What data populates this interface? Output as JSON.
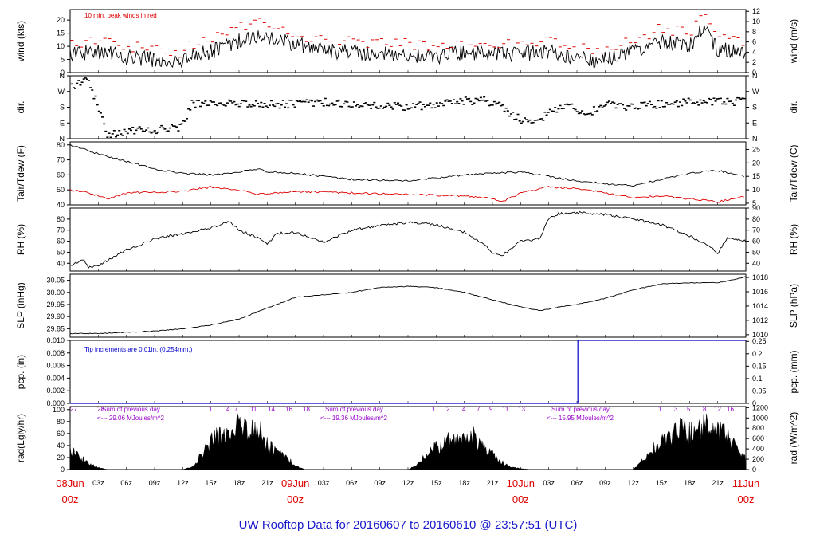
{
  "footer": "UW Rooftop Data for 20160607  to  20160610 @ 23:57:51  (UTC)",
  "colors": {
    "series": "#000000",
    "peak": "#e00000",
    "dewpoint": "#e00000",
    "note_blue": "#0000cc",
    "sum_text": "#9900cc",
    "date": "#e00000",
    "footer": "#1a1acc"
  },
  "time_axis": {
    "hours_total": 72,
    "hour_labels": [
      {
        "h": 3,
        "t": "03z"
      },
      {
        "h": 6,
        "t": "06z"
      },
      {
        "h": 9,
        "t": "09z"
      },
      {
        "h": 12,
        "t": "12z"
      },
      {
        "h": 15,
        "t": "15z"
      },
      {
        "h": 18,
        "t": "18z"
      },
      {
        "h": 21,
        "t": "21z"
      },
      {
        "h": 27,
        "t": "03z"
      },
      {
        "h": 30,
        "t": "06z"
      },
      {
        "h": 33,
        "t": "09z"
      },
      {
        "h": 36,
        "t": "12z"
      },
      {
        "h": 39,
        "t": "15z"
      },
      {
        "h": 42,
        "t": "18z"
      },
      {
        "h": 45,
        "t": "21z"
      },
      {
        "h": 51,
        "t": "03z"
      },
      {
        "h": 54,
        "t": "06z"
      },
      {
        "h": 57,
        "t": "09z"
      },
      {
        "h": 60,
        "t": "12z"
      },
      {
        "h": 63,
        "t": "15z"
      },
      {
        "h": 66,
        "t": "18z"
      },
      {
        "h": 69,
        "t": "21z"
      }
    ],
    "date_labels": [
      {
        "h": 0,
        "date": "08Jun",
        "time": "00z"
      },
      {
        "h": 24,
        "date": "09Jun",
        "time": "00z"
      },
      {
        "h": 48,
        "date": "10Jun",
        "time": "00z"
      },
      {
        "h": 72,
        "date": "11Jun",
        "time": "00z"
      }
    ]
  },
  "chart_data": [
    {
      "id": "wind",
      "type": "line",
      "ylabel_left": "wind (kts)",
      "ylabel_right": "wind (m/s)",
      "ylim": [
        0,
        24
      ],
      "left_ticks": [
        0,
        5,
        10,
        15,
        20
      ],
      "right_ylim": [
        0,
        12.35
      ],
      "right_ticks": [
        0,
        2,
        4,
        6,
        8,
        10,
        12
      ],
      "annotation": "10 min. peak winds in red",
      "x": [
        0,
        3,
        6,
        9,
        12,
        12.5,
        15,
        18,
        20,
        21,
        24,
        27,
        30,
        33,
        36,
        39,
        42,
        45,
        48,
        51,
        54,
        56,
        60,
        63,
        66,
        67.5,
        69,
        72
      ],
      "y": [
        7,
        8,
        6,
        5,
        4,
        6,
        8,
        12,
        14,
        13,
        11,
        8,
        8,
        7,
        7,
        6,
        8,
        7,
        7,
        8,
        6,
        4,
        8,
        12,
        10,
        17,
        9,
        8
      ],
      "peak_y": [
        11,
        12,
        10,
        9,
        7,
        10,
        13,
        17,
        19,
        18,
        15,
        12,
        12,
        11,
        11,
        10,
        12,
        11,
        11,
        12,
        10,
        8,
        12,
        17,
        15,
        22,
        13,
        12
      ]
    },
    {
      "id": "dir",
      "type": "scatter",
      "ylabel_left": "dir.",
      "ylabel_right": "dir.",
      "y_categories": [
        "N",
        "E",
        "S",
        "W",
        "N"
      ],
      "ylim": [
        0,
        360
      ],
      "x": [
        0,
        2,
        4,
        6,
        8,
        10,
        12,
        13,
        15,
        18,
        21,
        24,
        27,
        30,
        33,
        36,
        39,
        42,
        44,
        46,
        48,
        50,
        51,
        53,
        55,
        57,
        60,
        63,
        66,
        69,
        72
      ],
      "y": [
        295,
        335,
        20,
        40,
        50,
        55,
        70,
        200,
        210,
        200,
        195,
        200,
        210,
        195,
        185,
        185,
        190,
        215,
        220,
        180,
        110,
        100,
        150,
        200,
        140,
        200,
        180,
        200,
        210,
        210,
        215
      ]
    },
    {
      "id": "temp",
      "type": "line",
      "ylabel_left": "Tair/Tdew (F)",
      "ylabel_right": "Tair/Tdew (C)",
      "ylim": [
        40,
        82
      ],
      "left_ticks": [
        40,
        50,
        60,
        70,
        80
      ],
      "right_ylim": [
        4.4,
        27.8
      ],
      "right_ticks": [
        5,
        10,
        15,
        20,
        25
      ],
      "series": [
        {
          "x": [
            0,
            3,
            6,
            9,
            12,
            15,
            18,
            20,
            21,
            24,
            30,
            36,
            42,
            48,
            50,
            54,
            57,
            60,
            63,
            66,
            69,
            72
          ],
          "y": [
            80,
            74,
            69,
            64,
            61,
            60,
            62,
            64,
            62,
            61,
            57,
            56,
            60,
            62,
            60,
            56,
            54,
            53,
            57,
            61,
            63,
            59
          ]
        },
        {
          "x": [
            0,
            2,
            4,
            6,
            12,
            15,
            18,
            20,
            24,
            30,
            36,
            42,
            45,
            46,
            48,
            51,
            54,
            57,
            60,
            63,
            66,
            69,
            72
          ],
          "y": [
            50,
            48,
            44,
            48,
            49,
            52,
            50,
            47,
            49,
            48,
            47,
            46,
            44,
            42,
            48,
            52,
            51,
            48,
            45,
            46,
            44,
            42,
            46
          ]
        }
      ]
    },
    {
      "id": "rh",
      "type": "line",
      "ylabel_left": "RH (%)",
      "ylabel_right": "RH (%)",
      "ylim": [
        33,
        90
      ],
      "left_ticks": [
        40,
        50,
        60,
        70,
        80
      ],
      "right_ticks": [
        40,
        50,
        60,
        70,
        80,
        90
      ],
      "x": [
        0,
        1.5,
        2,
        3,
        6,
        9,
        12,
        15,
        17,
        18,
        20,
        21,
        22,
        24,
        27,
        30,
        33,
        36,
        39,
        42,
        44,
        45,
        46,
        48,
        50,
        51,
        52,
        54,
        57,
        60,
        63,
        66,
        68,
        69,
        70,
        72
      ],
      "y": [
        38,
        43,
        36,
        38,
        52,
        62,
        67,
        72,
        78,
        70,
        63,
        57,
        67,
        68,
        59,
        70,
        74,
        77,
        75,
        68,
        58,
        50,
        47,
        60,
        62,
        80,
        85,
        86,
        84,
        80,
        75,
        65,
        56,
        49,
        63,
        60
      ]
    },
    {
      "id": "slp",
      "type": "line",
      "ylabel_left": "SLP (inHg)",
      "ylabel_right": "SLP (hPa)",
      "ylim": [
        29.815,
        30.075
      ],
      "left_ticks": [
        29.85,
        29.9,
        29.95,
        30.0,
        30.05
      ],
      "left_tick_labels": [
        "29.85",
        "29.90",
        "29.95",
        "30.00",
        "30.05"
      ],
      "right_ylim": [
        1009.65,
        1018.45
      ],
      "right_ticks": [
        1010,
        1012,
        1014,
        1016,
        1018
      ],
      "x": [
        0,
        3,
        6,
        9,
        12,
        15,
        18,
        21,
        24,
        27,
        30,
        33,
        36,
        39,
        42,
        45,
        48,
        50,
        51,
        52,
        54,
        57,
        60,
        63,
        66,
        69,
        71,
        72
      ],
      "y": [
        29.83,
        29.83,
        29.835,
        29.84,
        29.85,
        29.865,
        29.89,
        29.935,
        29.98,
        29.99,
        30.0,
        30.02,
        30.025,
        30.02,
        30.0,
        29.97,
        29.94,
        29.925,
        29.93,
        29.94,
        29.95,
        29.975,
        30.01,
        30.035,
        30.04,
        30.04,
        30.055,
        30.065
      ]
    },
    {
      "id": "pcp",
      "type": "line",
      "ylabel_left": "pcp. (in)",
      "ylabel_right": "pcp. (mm)",
      "ylim": [
        0,
        0.01
      ],
      "left_ticks": [
        0,
        0.002,
        0.004,
        0.006,
        0.008,
        0.01
      ],
      "left_tick_labels": [
        "0.000",
        "0.002",
        "0.004",
        "0.006",
        "0.008",
        "0.010"
      ],
      "right_ylim": [
        0,
        0.254
      ],
      "right_ticks": [
        0,
        0.05,
        0.1,
        0.15,
        0.2,
        0.25
      ],
      "annotation": "Tip increments are 0.01in. (0.254mm.)",
      "x": [
        0,
        54.1,
        54.1,
        72
      ],
      "y": [
        0,
        0,
        0.01,
        0.01
      ]
    },
    {
      "id": "rad",
      "type": "area",
      "ylabel_left": "rad(Lgly/hr)",
      "ylabel_right": "rad (W/m^2)",
      "ylim": [
        0,
        105
      ],
      "left_ticks": [
        0,
        20,
        40,
        60,
        80,
        100
      ],
      "right_ylim": [
        0,
        1221
      ],
      "right_ticks": [
        0,
        200,
        400,
        600,
        800,
        1000,
        1200
      ],
      "x": [
        0,
        1,
        2,
        3,
        4,
        12,
        13,
        14,
        15,
        16,
        17,
        18,
        19,
        20,
        21,
        22,
        23,
        24,
        25,
        36,
        37,
        38,
        39,
        40,
        41,
        42,
        43,
        44,
        45,
        46,
        47,
        48,
        49,
        60,
        61,
        62,
        63,
        64,
        65,
        66,
        67,
        68,
        69,
        70,
        71,
        72
      ],
      "y": [
        40,
        25,
        12,
        4,
        0,
        0,
        5,
        30,
        55,
        70,
        80,
        95,
        75,
        85,
        50,
        35,
        25,
        8,
        0,
        0,
        10,
        30,
        45,
        55,
        60,
        55,
        65,
        45,
        30,
        15,
        5,
        2,
        0,
        0,
        20,
        40,
        55,
        70,
        80,
        75,
        90,
        85,
        75,
        70,
        40,
        20
      ]
    }
  ],
  "radiation_notes": {
    "hour_digits": [
      {
        "day": 1,
        "digits": [
          "27",
          "28"
        ]
      },
      {
        "day": 2,
        "digits": [
          "1",
          "4",
          "7",
          "11",
          "14",
          "16",
          "18"
        ]
      },
      {
        "day": 3,
        "digits": [
          "1",
          "2",
          "4",
          "7",
          "9",
          "11",
          "13"
        ]
      },
      {
        "day": 4,
        "digits": [
          "1",
          "3",
          "5",
          "8",
          "12",
          "16"
        ]
      }
    ],
    "sums": [
      {
        "line1": "Sum of previous day",
        "line2": "<--- 29.06 MJoules/m^2"
      },
      {
        "line1": "Sum of previous day",
        "line2": "<--- 19.36 MJoules/m^2"
      },
      {
        "line1": "Sum of previous day",
        "line2": "<--- 15.95 MJoules/m^2"
      }
    ]
  }
}
